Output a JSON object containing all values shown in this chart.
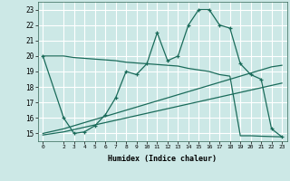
{
  "xlabel": "Humidex (Indice chaleur)",
  "bg_color": "#cce8e6",
  "line_color": "#1a6b5a",
  "grid_color": "#ffffff",
  "hours": [
    0,
    2,
    3,
    4,
    5,
    6,
    7,
    8,
    9,
    10,
    11,
    12,
    13,
    14,
    15,
    16,
    17,
    18,
    19,
    20,
    21,
    22,
    23
  ],
  "flat_line": [
    20.0,
    20.0,
    19.9,
    19.85,
    19.8,
    19.75,
    19.7,
    19.6,
    19.55,
    19.5,
    19.45,
    19.4,
    19.35,
    19.2,
    19.1,
    19.0,
    18.8,
    18.7,
    14.85,
    14.85,
    14.82,
    14.8,
    14.78
  ],
  "humidex_curve": [
    20.0,
    16.0,
    15.0,
    15.1,
    15.5,
    16.2,
    17.3,
    19.0,
    18.8,
    19.5,
    21.5,
    19.7,
    20.0,
    22.0,
    23.0,
    23.0,
    22.0,
    21.8,
    19.5,
    18.8,
    18.5,
    15.3,
    14.78
  ],
  "regression_low": [
    14.9,
    15.1,
    15.25,
    15.4,
    15.55,
    15.7,
    15.85,
    16.0,
    16.15,
    16.3,
    16.45,
    16.6,
    16.75,
    16.9,
    17.05,
    17.2,
    17.35,
    17.5,
    17.65,
    17.8,
    17.95,
    18.1,
    18.25
  ],
  "regression_high": [
    15.0,
    15.3,
    15.5,
    15.7,
    15.9,
    16.1,
    16.3,
    16.5,
    16.7,
    16.9,
    17.1,
    17.3,
    17.5,
    17.7,
    17.9,
    18.1,
    18.3,
    18.5,
    18.7,
    18.9,
    19.1,
    19.3,
    19.4
  ],
  "ylim": [
    14.5,
    23.5
  ],
  "yticks": [
    15,
    16,
    17,
    18,
    19,
    20,
    21,
    22,
    23
  ],
  "xticks": [
    0,
    2,
    3,
    4,
    5,
    6,
    7,
    8,
    9,
    10,
    11,
    12,
    13,
    14,
    15,
    16,
    17,
    18,
    19,
    20,
    21,
    22,
    23
  ]
}
